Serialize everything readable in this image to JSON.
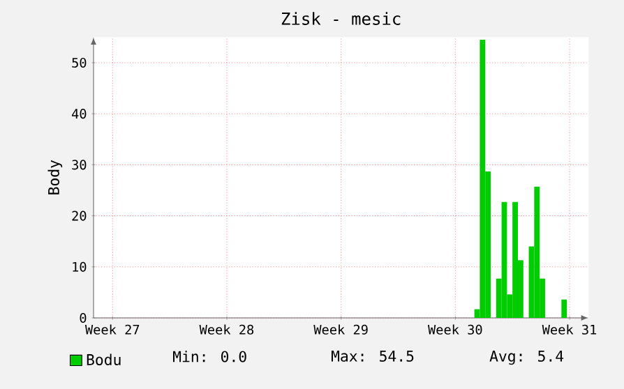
{
  "chart_data": {
    "type": "bar",
    "title": "Zisk - mesic",
    "ylabel": "Body",
    "categories": [
      null,
      null,
      null,
      "Week 27",
      null,
      null,
      null,
      null,
      null,
      null,
      null,
      null,
      null,
      null,
      null,
      null,
      null,
      null,
      null,
      null,
      null,
      null,
      null,
      null,
      "Week 28",
      null,
      null,
      null,
      null,
      null,
      null,
      null,
      null,
      null,
      null,
      null,
      null,
      null,
      null,
      null,
      null,
      null,
      null,
      null,
      null,
      "Week 29",
      null,
      null,
      null,
      null,
      null,
      null,
      null,
      null,
      null,
      null,
      null,
      null,
      null,
      null,
      null,
      null,
      null,
      null,
      null,
      null,
      "Week 30",
      null,
      null,
      null,
      null,
      null,
      null,
      null,
      null,
      null,
      null,
      null,
      null,
      null,
      null,
      null,
      null,
      null,
      null,
      null,
      null,
      "Week 31",
      null,
      null,
      null
    ],
    "series": [
      {
        "name": "Bodu",
        "color": "#00cc00",
        "values": [
          0,
          0,
          0,
          0,
          0,
          0,
          0,
          0,
          0,
          0,
          0,
          0,
          0,
          0,
          0,
          0,
          0,
          0,
          0,
          0,
          0,
          0,
          0,
          0,
          0,
          0,
          0,
          0,
          0,
          0,
          0,
          0,
          0,
          0,
          0,
          0,
          0,
          0,
          0,
          0,
          0,
          0,
          0,
          0,
          0,
          0,
          0,
          0,
          0,
          0,
          0,
          0,
          0,
          0,
          0,
          0,
          0,
          0,
          0,
          0,
          0,
          0,
          0,
          0,
          0,
          0,
          0,
          0,
          0,
          0,
          1.7,
          54.5,
          28.7,
          0,
          7.7,
          22.7,
          4.6,
          22.7,
          11.3,
          0,
          14,
          25.7,
          7.7,
          0,
          0,
          0,
          3.6,
          0,
          0,
          0,
          0
        ]
      }
    ],
    "ylim": [
      0,
      55
    ],
    "yticks": [
      0,
      10,
      20,
      30,
      40,
      50
    ],
    "grid": true,
    "legend": "bottom left",
    "annotations": [
      "Min:   0.0",
      "Max:  54.5",
      "Avg:   5.4"
    ]
  }
}
